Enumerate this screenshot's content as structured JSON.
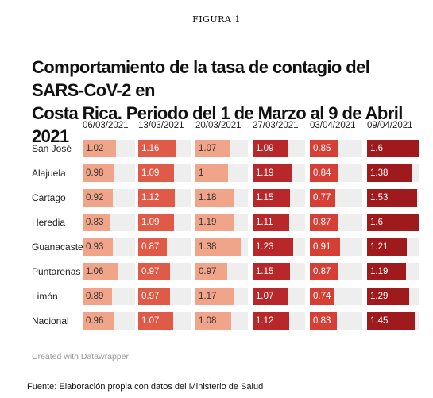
{
  "figure_label": "FIGURA 1",
  "title_line1": "Comportamiento de la tasa de contagio del SARS-CoV-2 en",
  "title_line2": "Costa Rica. Periodo del 1 de Marzo al 9 de Abril  2021",
  "credit": "Created with Datawrapper",
  "source": "Fuente: Elaboración propia con datos del Ministerio de Salud",
  "chart_data": {
    "type": "table",
    "columns": [
      "06/03/2021",
      "13/03/2021",
      "20/03/2021",
      "27/03/2021",
      "03/04/2021",
      "09/04/2021"
    ],
    "rows": [
      "San José",
      "Alajuela",
      "Cartago",
      "Heredia",
      "Guanacaste",
      "Puntarenas",
      "Limón",
      "Nacional"
    ],
    "values": [
      [
        1.02,
        1.16,
        1.07,
        1.09,
        0.85,
        1.6
      ],
      [
        0.98,
        1.09,
        1,
        1.19,
        0.84,
        1.38
      ],
      [
        0.92,
        1.12,
        1.18,
        1.15,
        0.77,
        1.53
      ],
      [
        0.83,
        1.09,
        1.19,
        1.11,
        0.87,
        1.6
      ],
      [
        0.93,
        0.87,
        1.38,
        1.23,
        0.91,
        1.21
      ],
      [
        1.06,
        0.97,
        0.97,
        1.15,
        0.87,
        1.19
      ],
      [
        0.89,
        0.97,
        1.17,
        1.07,
        0.74,
        1.29
      ],
      [
        0.96,
        1.07,
        1.08,
        1.12,
        0.83,
        1.45
      ]
    ],
    "colors": [
      "#f0a58a",
      "#e05a48",
      "#f0a58a",
      "#b8282a",
      "#d63f35",
      "#9e1a1c"
    ],
    "range": [
      0,
      1.6
    ]
  }
}
